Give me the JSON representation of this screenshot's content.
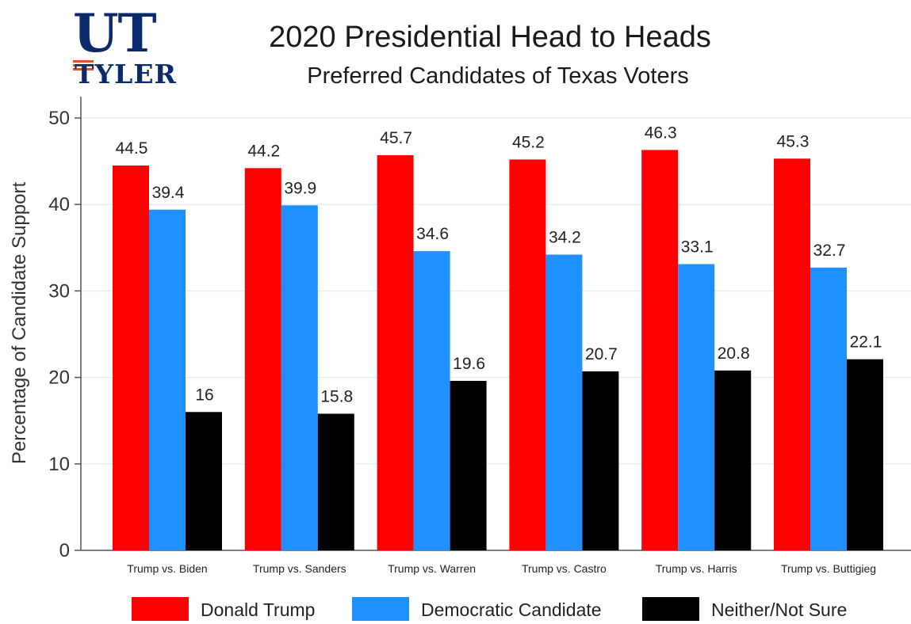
{
  "logo": {
    "line1": "UT",
    "line2": "TYLER"
  },
  "chart_data": {
    "type": "bar",
    "title": "2020 Presidential Head to Heads",
    "subtitle": "Preferred Candidates of Texas Voters",
    "ylabel": "Percentage of Candidate Support",
    "xlabel": "",
    "ylim": [
      0,
      52
    ],
    "yticks": [
      "0",
      "10",
      "20",
      "30",
      "40",
      "50"
    ],
    "grid": true,
    "legend_position": "bottom",
    "categories": [
      "Trump vs. Biden",
      "Trump vs. Sanders",
      "Trump vs. Warren",
      "Trump vs. Castro",
      "Trump vs. Harris",
      "Trump vs. Buttigieg"
    ],
    "series": [
      {
        "name": "Donald Trump",
        "color": "#ff0000",
        "values": [
          44.5,
          44.2,
          45.7,
          45.2,
          46.3,
          45.3
        ]
      },
      {
        "name": "Democratic Candidate",
        "color": "#1e90ff",
        "values": [
          39.4,
          39.9,
          34.6,
          34.2,
          33.1,
          32.7
        ]
      },
      {
        "name": "Neither/Not Sure",
        "color": "#000000",
        "values": [
          16,
          15.8,
          19.6,
          20.7,
          20.8,
          22.1
        ]
      }
    ]
  }
}
